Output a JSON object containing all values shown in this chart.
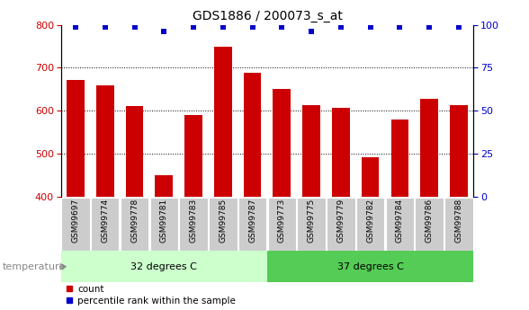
{
  "title": "GDS1886 / 200073_s_at",
  "categories": [
    "GSM99697",
    "GSM99774",
    "GSM99778",
    "GSM99781",
    "GSM99783",
    "GSM99785",
    "GSM99787",
    "GSM99773",
    "GSM99775",
    "GSM99779",
    "GSM99782",
    "GSM99784",
    "GSM99786",
    "GSM99788"
  ],
  "counts": [
    672,
    660,
    612,
    450,
    590,
    748,
    688,
    650,
    613,
    608,
    493,
    580,
    627,
    613
  ],
  "percentile_ranks": [
    99,
    99,
    99,
    96,
    99,
    99,
    99,
    99,
    96,
    99,
    99,
    99,
    99,
    99
  ],
  "group1_label": "32 degrees C",
  "group2_label": "37 degrees C",
  "group1_count": 7,
  "group2_count": 7,
  "ylim_left": [
    400,
    800
  ],
  "ylim_right": [
    0,
    100
  ],
  "yticks_left": [
    400,
    500,
    600,
    700,
    800
  ],
  "yticks_right": [
    0,
    25,
    50,
    75,
    100
  ],
  "bar_color": "#cc0000",
  "dot_color": "#0000cc",
  "group1_bg": "#ccffcc",
  "group2_bg": "#55cc55",
  "tick_label_bg": "#cccccc",
  "xlabel_color_left": "#cc0000",
  "xlabel_color_right": "#0000cc",
  "grid_color": "#000000",
  "temperature_label": "temperature",
  "legend_count_label": "count",
  "legend_percentile_label": "percentile rank within the sample",
  "bar_width": 0.6
}
